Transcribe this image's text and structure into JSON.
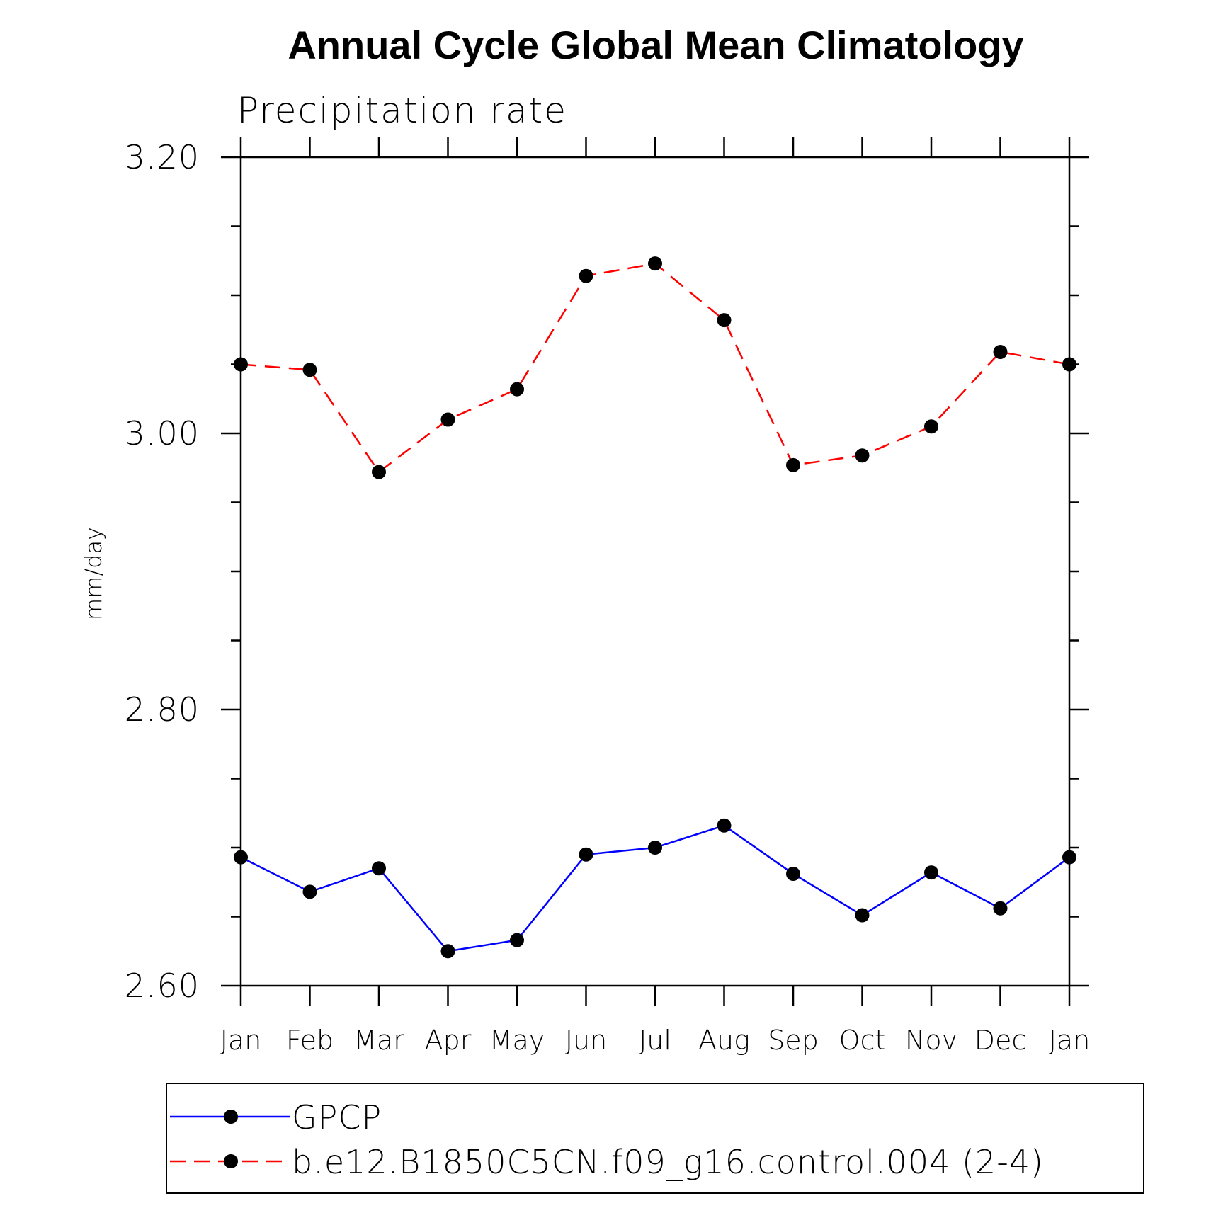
{
  "chart_data": {
    "type": "line",
    "title": "Annual Cycle Global Mean Climatology",
    "subtitle": "Precipitation rate",
    "xlabel": "",
    "ylabel": "mm/day",
    "ylim": [
      2.6,
      3.2
    ],
    "ytick_values": [
      2.6,
      2.8,
      3.0,
      3.2
    ],
    "ytick_labels": [
      "2.60",
      "2.80",
      "3.00",
      "3.20"
    ],
    "categories": [
      "Jan",
      "Feb",
      "Mar",
      "Apr",
      "May",
      "Jun",
      "Jul",
      "Aug",
      "Sep",
      "Oct",
      "Nov",
      "Dec",
      "Jan"
    ],
    "series": [
      {
        "name": "GPCP",
        "color": "#0000ff",
        "dash": "solid",
        "values": [
          2.693,
          2.668,
          2.685,
          2.625,
          2.633,
          2.695,
          2.7,
          2.716,
          2.681,
          2.651,
          2.682,
          2.656,
          2.693
        ]
      },
      {
        "name": "b.e12.B1850C5CN.f09_g16.control.004 (2-4)",
        "color": "#ff0000",
        "dash": "dashed",
        "values": [
          3.05,
          3.046,
          2.972,
          3.01,
          3.032,
          3.114,
          3.123,
          3.082,
          2.977,
          2.984,
          3.005,
          3.059,
          3.05
        ]
      }
    ],
    "legend_position": "bottom",
    "grid": false
  }
}
